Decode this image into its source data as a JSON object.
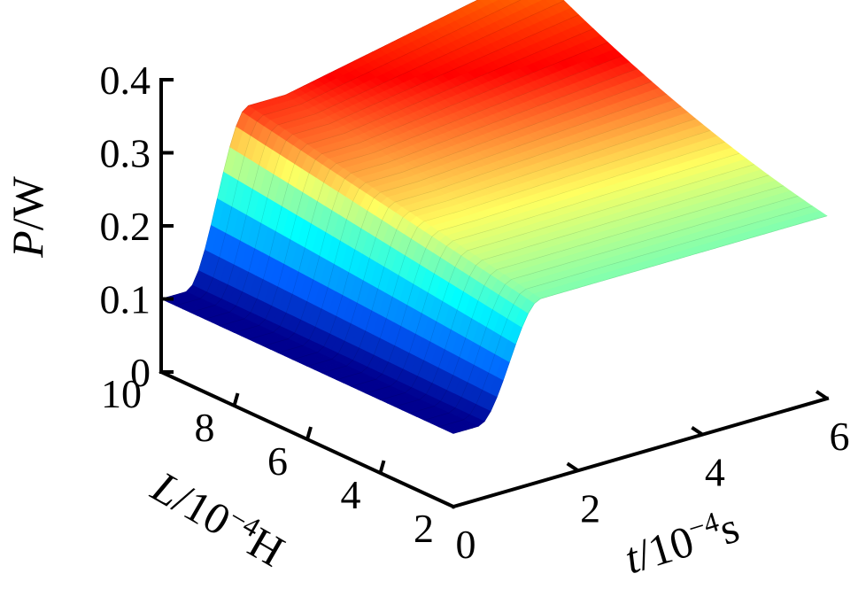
{
  "chart_data": {
    "type": "surface",
    "axes": {
      "x": {
        "label_main": "t",
        "label_rest": "/10",
        "label_exp": "−4",
        "label_unit": "s",
        "range": [
          0,
          6
        ],
        "ticks": [
          "0",
          "2",
          "4",
          "6"
        ]
      },
      "y": {
        "label_main": "L",
        "label_rest": "/10",
        "label_exp": "−4",
        "label_unit": "H",
        "range": [
          2,
          10
        ],
        "ticks": [
          "2",
          "4",
          "6",
          "8",
          "10"
        ]
      },
      "z": {
        "label_main": "P",
        "label_rest": "/W",
        "range": [
          0,
          0.4
        ],
        "ticks": [
          "0",
          "0.1",
          "0.2",
          "0.3",
          "0.4"
        ]
      }
    },
    "surface": {
      "t_values": [
        0,
        0.5,
        1,
        1.5,
        2,
        2.5,
        3,
        3.5,
        4,
        4.5,
        5,
        5.5,
        6
      ],
      "L_values": [
        2,
        3,
        4,
        5,
        6,
        7,
        8,
        9,
        10
      ],
      "P_at_t0": [
        0.1,
        0.1,
        0.1,
        0.1,
        0.1,
        0.1,
        0.1,
        0.1,
        0.1
      ],
      "P_steady_t6": [
        0.25,
        0.25,
        0.25,
        0.25,
        0.25,
        0.25,
        0.25,
        0.25,
        0.25
      ],
      "P_peak": 0.33,
      "P_corner_max": 0.4
    },
    "colormap": [
      "#00008f",
      "#0060ff",
      "#00ffff",
      "#ffff60",
      "#ff0000",
      "#ff8000"
    ]
  }
}
